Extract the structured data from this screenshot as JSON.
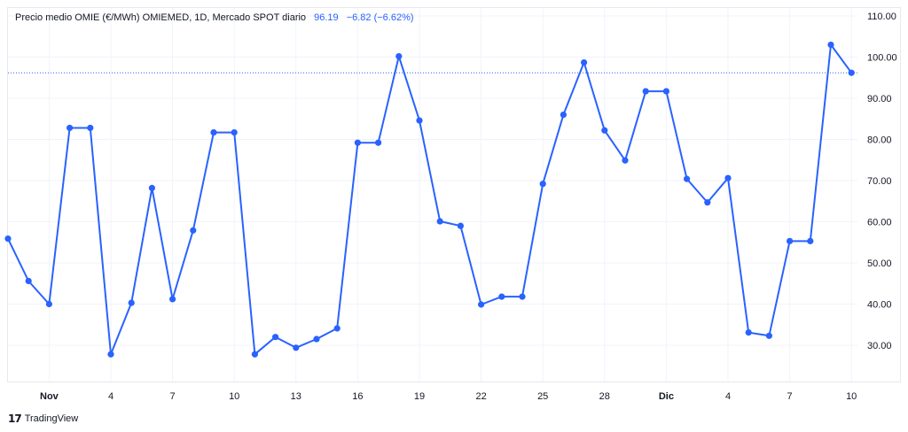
{
  "legend": {
    "title": "Precio medio OMIE (€/MWh) OMIEMED, 1D, Mercado SPOT diario",
    "last_value": "96.19",
    "change": "−6.82 (−6.62%)"
  },
  "footer": {
    "logo": "17",
    "brand": "TradingView"
  },
  "colors": {
    "line": "#2962ff",
    "grid": "#f0f3fa",
    "text": "#131722",
    "axis_text": "#131722"
  },
  "chart_data": {
    "type": "line",
    "title": "Precio medio OMIE (€/MWh) OMIEMED, 1D, Mercado SPOT diario",
    "xlabel": "",
    "ylabel": "",
    "ylim": [
      20,
      110
    ],
    "yticks": [
      "110.00",
      "100.00",
      "90.00",
      "80.00",
      "70.00",
      "60.00",
      "50.00",
      "40.00",
      "30.00"
    ],
    "ytick_values": [
      110,
      100,
      90,
      80,
      70,
      60,
      50,
      40,
      30
    ],
    "xticks": [
      {
        "label": "Nov",
        "index": 2,
        "bold": true
      },
      {
        "label": "4",
        "index": 5,
        "bold": false
      },
      {
        "label": "7",
        "index": 8,
        "bold": false
      },
      {
        "label": "10",
        "index": 11,
        "bold": false
      },
      {
        "label": "13",
        "index": 14,
        "bold": false
      },
      {
        "label": "16",
        "index": 17,
        "bold": false
      },
      {
        "label": "19",
        "index": 20,
        "bold": false
      },
      {
        "label": "22",
        "index": 23,
        "bold": false
      },
      {
        "label": "25",
        "index": 26,
        "bold": false
      },
      {
        "label": "28",
        "index": 29,
        "bold": false
      },
      {
        "label": "Dic",
        "index": 32,
        "bold": true
      },
      {
        "label": "4",
        "index": 35,
        "bold": false
      },
      {
        "label": "7",
        "index": 38,
        "bold": false
      },
      {
        "label": "10",
        "index": 41,
        "bold": false
      }
    ],
    "last_price_line": 96.19,
    "grid": true,
    "series": [
      {
        "values": [
          55.9,
          45.6,
          40.0,
          82.8,
          82.8,
          27.8,
          40.3,
          68.2,
          41.2,
          57.9,
          81.7,
          81.7,
          27.8,
          32.0,
          29.4,
          31.5,
          34.1,
          79.2,
          79.2,
          100.2,
          84.6,
          60.1,
          59.0,
          39.9,
          41.8,
          41.8,
          69.2,
          86.0,
          98.7,
          82.2,
          74.9,
          91.7,
          91.7,
          70.4,
          64.7,
          70.6,
          33.1,
          32.3,
          55.3,
          55.3,
          103.0,
          96.19
        ]
      }
    ]
  }
}
